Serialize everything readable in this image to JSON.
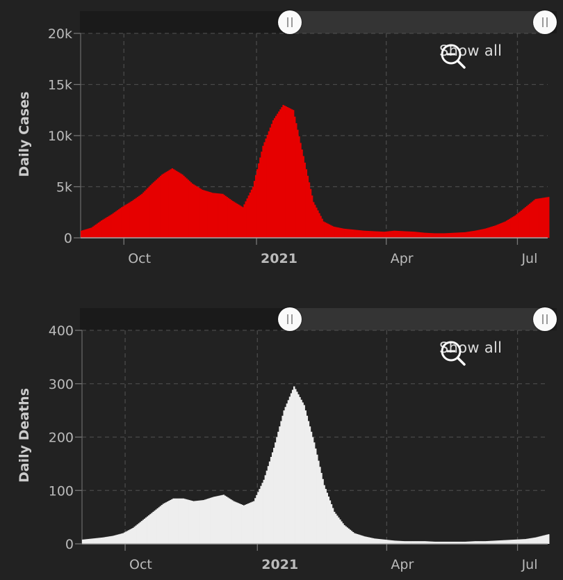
{
  "show_all_label": "Show all",
  "colors": {
    "cases": "#e60000",
    "deaths": "#eeeeee",
    "background": "#222222",
    "grid": "#4a4a4a"
  },
  "chart_data": [
    {
      "type": "bar",
      "ylabel": "Daily Cases",
      "ylim": [
        0,
        20000
      ],
      "yticks": [
        0,
        5000,
        10000,
        15000,
        20000
      ],
      "yticklabels": [
        "0",
        "5k",
        "10k",
        "15k",
        "20k"
      ],
      "xticks": [
        {
          "label": "Oct",
          "date": "2020-10-01"
        },
        {
          "label": "2021",
          "date": "2021-01-01",
          "bold": true
        },
        {
          "label": "Apr",
          "date": "2021-04-01"
        },
        {
          "label": "Jul",
          "date": "2021-07-01"
        }
      ],
      "xrange": [
        "2020-09-01",
        "2021-07-22"
      ],
      "grid": true,
      "series": [
        {
          "values": [
            [
              [
                "2020-09-01",
                700
              ],
              [
                "2020-09-08",
                1000
              ],
              [
                "2020-09-15",
                1700
              ],
              [
                "2020-09-22",
                2300
              ],
              [
                "2020-09-29",
                3000
              ],
              [
                "2020-10-06",
                3600
              ],
              [
                "2020-10-13",
                4300
              ],
              [
                "2020-10-20",
                5300
              ],
              [
                "2020-10-27",
                6200
              ],
              [
                "2020-11-03",
                6800
              ],
              [
                "2020-11-10",
                6200
              ],
              [
                "2020-11-17",
                5300
              ],
              [
                "2020-11-24",
                4700
              ],
              [
                "2020-12-01",
                4400
              ],
              [
                "2020-12-08",
                4300
              ],
              [
                "2020-12-15",
                3600
              ],
              [
                "2020-12-22",
                3000
              ],
              [
                "2020-12-29",
                5000
              ],
              [
                "2021-01-05",
                9000
              ],
              [
                "2021-01-12",
                11500
              ],
              [
                "2021-01-19",
                13000
              ],
              [
                "2021-01-26",
                12500
              ],
              [
                "2021-02-02",
                8000
              ],
              [
                "2021-02-09",
                3500
              ],
              [
                "2021-02-16",
                1600
              ],
              [
                "2021-02-23",
                1100
              ],
              [
                "2021-03-02",
                900
              ],
              [
                "2021-03-09",
                800
              ],
              [
                "2021-03-16",
                700
              ],
              [
                "2021-03-23",
                650
              ],
              [
                "2021-03-30",
                600
              ],
              [
                "2021-04-06",
                700
              ],
              [
                "2021-04-13",
                650
              ],
              [
                "2021-04-20",
                600
              ],
              [
                "2021-04-27",
                500
              ],
              [
                "2021-05-04",
                450
              ],
              [
                "2021-05-11",
                450
              ],
              [
                "2021-05-18",
                500
              ],
              [
                "2021-05-25",
                550
              ],
              [
                "2021-06-01",
                700
              ],
              [
                "2021-06-08",
                900
              ],
              [
                "2021-06-15",
                1200
              ],
              [
                "2021-06-22",
                1600
              ],
              [
                "2021-06-29",
                2200
              ],
              [
                "2021-07-06",
                3000
              ],
              [
                "2021-07-13",
                3800
              ],
              [
                "2021-07-22",
                4000
              ]
            ]
          ]
        }
      ]
    },
    {
      "type": "bar",
      "ylabel": "Daily Deaths",
      "ylim": [
        0,
        400
      ],
      "yticks": [
        0,
        100,
        200,
        300,
        400
      ],
      "yticklabels": [
        "0",
        "100",
        "200",
        "300",
        "400"
      ],
      "xticks": [
        {
          "label": "Oct",
          "date": "2020-10-01"
        },
        {
          "label": "2021",
          "date": "2021-01-01",
          "bold": true
        },
        {
          "label": "Apr",
          "date": "2021-04-01"
        },
        {
          "label": "Jul",
          "date": "2021-07-01"
        }
      ],
      "xrange": [
        "2020-09-01",
        "2021-07-22"
      ],
      "grid": true,
      "series": [
        {
          "values": [
            [
              [
                "2020-09-01",
                8
              ],
              [
                "2020-09-08",
                10
              ],
              [
                "2020-09-15",
                12
              ],
              [
                "2020-09-22",
                15
              ],
              [
                "2020-09-29",
                20
              ],
              [
                "2020-10-06",
                30
              ],
              [
                "2020-10-13",
                45
              ],
              [
                "2020-10-20",
                60
              ],
              [
                "2020-10-27",
                75
              ],
              [
                "2020-11-03",
                85
              ],
              [
                "2020-11-10",
                85
              ],
              [
                "2020-11-17",
                80
              ],
              [
                "2020-11-24",
                82
              ],
              [
                "2020-12-01",
                88
              ],
              [
                "2020-12-08",
                92
              ],
              [
                "2020-12-15",
                80
              ],
              [
                "2020-12-22",
                72
              ],
              [
                "2020-12-29",
                80
              ],
              [
                "2021-01-05",
                120
              ],
              [
                "2021-01-12",
                180
              ],
              [
                "2021-01-19",
                250
              ],
              [
                "2021-01-26",
                295
              ],
              [
                "2021-02-02",
                260
              ],
              [
                "2021-02-09",
                190
              ],
              [
                "2021-02-16",
                110
              ],
              [
                "2021-02-23",
                60
              ],
              [
                "2021-03-02",
                35
              ],
              [
                "2021-03-09",
                20
              ],
              [
                "2021-03-16",
                14
              ],
              [
                "2021-03-23",
                10
              ],
              [
                "2021-03-30",
                8
              ],
              [
                "2021-04-06",
                6
              ],
              [
                "2021-04-13",
                5
              ],
              [
                "2021-04-20",
                5
              ],
              [
                "2021-04-27",
                5
              ],
              [
                "2021-05-04",
                4
              ],
              [
                "2021-05-11",
                4
              ],
              [
                "2021-05-18",
                4
              ],
              [
                "2021-05-25",
                4
              ],
              [
                "2021-06-01",
                5
              ],
              [
                "2021-06-08",
                5
              ],
              [
                "2021-06-15",
                6
              ],
              [
                "2021-06-22",
                7
              ],
              [
                "2021-06-29",
                8
              ],
              [
                "2021-07-06",
                9
              ],
              [
                "2021-07-13",
                12
              ],
              [
                "2021-07-22",
                18
              ]
            ]
          ]
        }
      ]
    }
  ]
}
